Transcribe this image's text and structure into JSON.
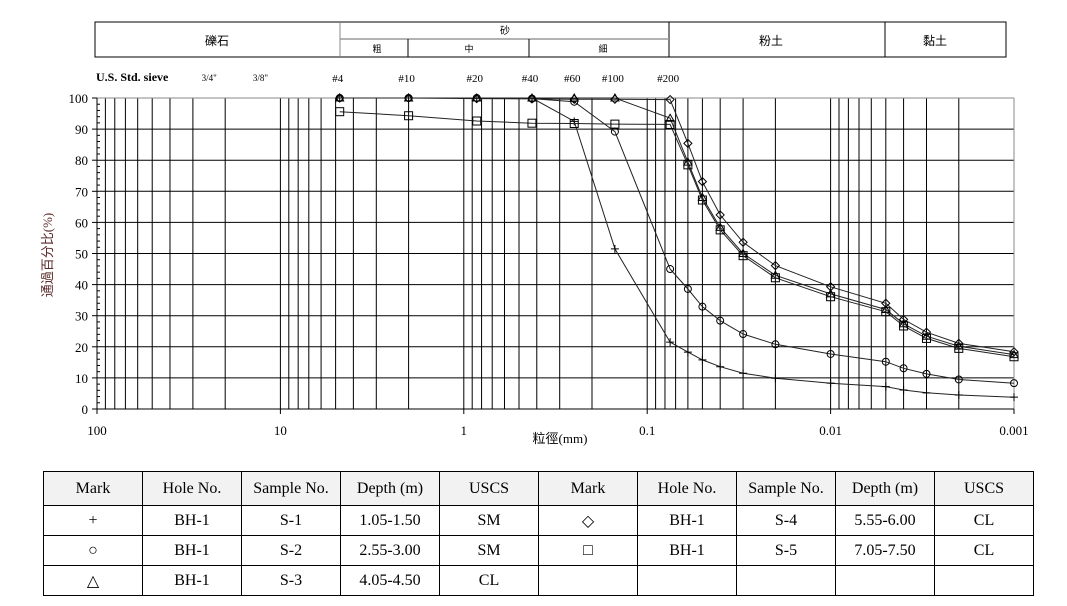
{
  "header": {
    "gravel": "礫石",
    "sand": "砂",
    "sand_coarse": "粗",
    "sand_medium": "中",
    "sand_fine": "細",
    "silt": "粉土",
    "clay": "黏土"
  },
  "sieve_row": {
    "label": "U.S. Std. sieve",
    "sieves": [
      {
        "name": "3/4\"",
        "size": 19.0
      },
      {
        "name": "3/8\"",
        "size": 9.5
      },
      {
        "name": "#4",
        "size": 4.75
      },
      {
        "name": "#10",
        "size": 2.0
      },
      {
        "name": "#20",
        "size": 0.85
      },
      {
        "name": "#40",
        "size": 0.425
      },
      {
        "name": "#60",
        "size": 0.25
      },
      {
        "name": "#100",
        "size": 0.15
      },
      {
        "name": "#200",
        "size": 0.075
      }
    ]
  },
  "chart_data": {
    "type": "line",
    "title": "",
    "xlabel": "粒徑(mm)",
    "ylabel": "通過百分比(%)",
    "xscale": "log",
    "xlim": [
      100,
      0.001
    ],
    "ylim": [
      0,
      100
    ],
    "x_ticks": [
      "100",
      "10",
      "1",
      "0.1",
      "0.01",
      "0.001"
    ],
    "x_tick_values": [
      100,
      10,
      1,
      0.1,
      0.01,
      0.001
    ],
    "y_ticks": [
      "0",
      "10",
      "20",
      "30",
      "40",
      "50",
      "60",
      "70",
      "80",
      "90",
      "100"
    ],
    "grid": true,
    "series": [
      {
        "name": "S-1",
        "marker": "plus",
        "x": [
          4.75,
          2.0,
          0.85,
          0.425,
          0.25,
          0.15,
          0.075,
          0.06,
          0.05,
          0.04,
          0.03,
          0.02,
          0.01,
          0.005,
          0.004,
          0.003,
          0.002,
          0.001
        ],
        "y": [
          100,
          100,
          100,
          100,
          92.5,
          51.5,
          21.5,
          18.3,
          15.8,
          13.6,
          11.5,
          9.9,
          8.3,
          7.2,
          6.1,
          5.2,
          4.5,
          3.8
        ]
      },
      {
        "name": "S-2",
        "marker": "circle",
        "x": [
          4.75,
          2.0,
          0.85,
          0.425,
          0.25,
          0.15,
          0.075,
          0.06,
          0.05,
          0.04,
          0.03,
          0.02,
          0.01,
          0.005,
          0.004,
          0.003,
          0.002,
          0.001
        ],
        "y": [
          100,
          100,
          100,
          99.8,
          98.8,
          89.2,
          45,
          38.6,
          32.9,
          28.4,
          24.1,
          20.8,
          17.7,
          15.2,
          13.1,
          11.3,
          9.5,
          8.3
        ]
      },
      {
        "name": "S-3",
        "marker": "triangle",
        "x": [
          4.75,
          2.0,
          0.85,
          0.425,
          0.25,
          0.15,
          0.075,
          0.06,
          0.05,
          0.04,
          0.03,
          0.02,
          0.01,
          0.005,
          0.004,
          0.003,
          0.002,
          0.001
        ],
        "y": [
          100,
          100,
          100,
          100,
          100,
          100,
          93.5,
          79.4,
          68,
          58.4,
          50,
          43,
          37,
          32,
          27.4,
          23.4,
          20.2,
          17.5
        ]
      },
      {
        "name": "S-4",
        "marker": "diamond",
        "x": [
          4.75,
          2.0,
          0.85,
          0.425,
          0.25,
          0.15,
          0.075,
          0.06,
          0.05,
          0.04,
          0.03,
          0.02,
          0.01,
          0.005,
          0.004,
          0.003,
          0.002,
          0.001
        ],
        "y": [
          100,
          100,
          99.8,
          99.7,
          99.6,
          99.6,
          99.5,
          85.4,
          73.1,
          62.4,
          53.6,
          46.1,
          39.3,
          34,
          28.8,
          24.7,
          21.1,
          18.4
        ]
      },
      {
        "name": "S-5",
        "marker": "square",
        "x": [
          4.75,
          2.0,
          0.85,
          0.425,
          0.25,
          0.15,
          0.075,
          0.06,
          0.05,
          0.04,
          0.03,
          0.02,
          0.01,
          0.005,
          0.004,
          0.003,
          0.002,
          0.001
        ],
        "y": [
          95.6,
          94.3,
          92.6,
          91.9,
          91.8,
          91.6,
          91.5,
          78.5,
          67.2,
          57.6,
          49.3,
          42.2,
          36.1,
          31.3,
          26.7,
          22.7,
          19.5,
          16.8
        ]
      }
    ]
  },
  "legend_table": {
    "headers": [
      "Mark",
      "Hole No.",
      "Sample No.",
      "Depth (m)",
      "USCS",
      "Mark",
      "Hole No.",
      "Sample No.",
      "Depth (m)",
      "USCS"
    ],
    "rows": [
      {
        "left": {
          "mark": "+",
          "hole": "BH-1",
          "sample": "S-1",
          "depth": "1.05-1.50",
          "uscs": "SM"
        },
        "right": {
          "mark": "◇",
          "hole": "BH-1",
          "sample": "S-4",
          "depth": "5.55-6.00",
          "uscs": "CL"
        }
      },
      {
        "left": {
          "mark": "○",
          "hole": "BH-1",
          "sample": "S-2",
          "depth": "2.55-3.00",
          "uscs": "SM"
        },
        "right": {
          "mark": "□",
          "hole": "BH-1",
          "sample": "S-5",
          "depth": "7.05-7.50",
          "uscs": "CL"
        }
      },
      {
        "left": {
          "mark": "△",
          "hole": "BH-1",
          "sample": "S-3",
          "depth": "4.05-4.50",
          "uscs": "CL"
        },
        "right": {}
      }
    ]
  }
}
